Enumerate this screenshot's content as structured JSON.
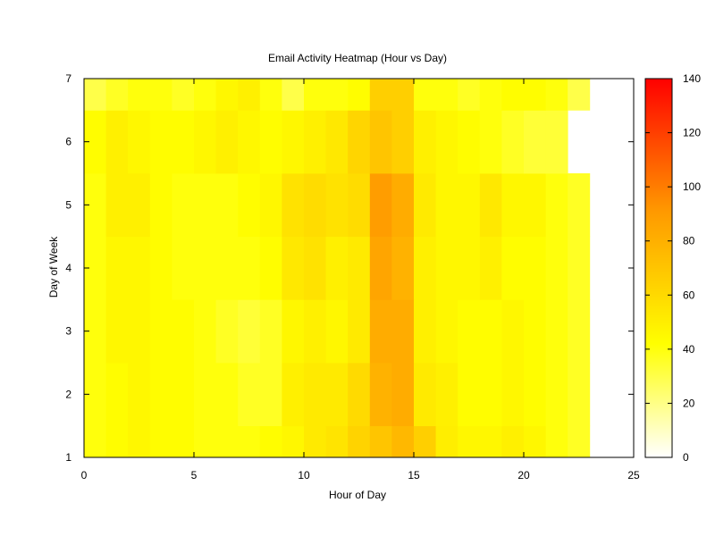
{
  "chart_data": {
    "type": "heatmap",
    "title": "Email Activity Heatmap (Hour vs Day)",
    "xlabel": "Hour of Day",
    "ylabel": "Day of Week",
    "xlim": [
      0,
      25
    ],
    "ylim": [
      1,
      7
    ],
    "x_ticks": [
      0,
      5,
      10,
      15,
      20,
      25
    ],
    "y_ticks": [
      1,
      2,
      3,
      4,
      5,
      6,
      7
    ],
    "colorbar": {
      "range": [
        0,
        140
      ],
      "ticks": [
        0,
        20,
        40,
        60,
        80,
        100,
        120,
        140
      ],
      "palette": [
        [
          "0",
          "#ffffff"
        ],
        [
          "0.3",
          "#ffff00"
        ],
        [
          "0.65",
          "#ff9900"
        ],
        [
          "1",
          "#ff0000"
        ]
      ]
    },
    "hours": [
      0,
      1,
      2,
      3,
      4,
      5,
      6,
      7,
      8,
      9,
      10,
      11,
      12,
      13,
      14,
      15,
      16,
      17,
      18,
      19,
      20,
      21,
      22,
      23
    ],
    "days": [
      1,
      2,
      3,
      4,
      5,
      6,
      7
    ],
    "values": [
      [
        40,
        43,
        46,
        43,
        43,
        40,
        40,
        40,
        43,
        46,
        52,
        55,
        63,
        70,
        76,
        65,
        50,
        46,
        46,
        49,
        46,
        40,
        36,
        0
      ],
      [
        40,
        43,
        46,
        43,
        43,
        40,
        40,
        36,
        36,
        49,
        52,
        52,
        60,
        79,
        82,
        52,
        49,
        43,
        43,
        46,
        43,
        40,
        36,
        0
      ],
      [
        40,
        46,
        46,
        43,
        43,
        40,
        36,
        33,
        36,
        46,
        49,
        46,
        52,
        82,
        82,
        49,
        46,
        43,
        43,
        46,
        43,
        40,
        36,
        0
      ],
      [
        40,
        46,
        46,
        43,
        40,
        40,
        40,
        40,
        43,
        53,
        56,
        49,
        52,
        85,
        79,
        49,
        46,
        46,
        49,
        43,
        43,
        40,
        36,
        0
      ],
      [
        40,
        49,
        49,
        43,
        40,
        40,
        40,
        43,
        46,
        56,
        59,
        56,
        59,
        89,
        82,
        52,
        46,
        46,
        53,
        46,
        46,
        40,
        36,
        0
      ],
      [
        43,
        49,
        46,
        43,
        43,
        46,
        49,
        46,
        43,
        46,
        49,
        53,
        62,
        70,
        65,
        49,
        46,
        43,
        40,
        36,
        33,
        33,
        0,
        0
      ],
      [
        30,
        36,
        40,
        40,
        36,
        40,
        46,
        49,
        40,
        30,
        40,
        40,
        43,
        65,
        65,
        40,
        40,
        36,
        40,
        43,
        43,
        40,
        30,
        0
      ]
    ]
  }
}
